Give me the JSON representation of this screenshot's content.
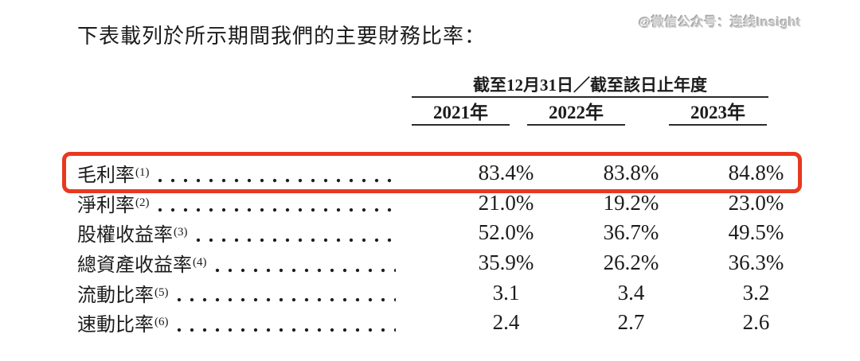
{
  "page": {
    "title": "下表載列於所示期間我們的主要財務比率：",
    "watermark": "@微信公众号：连线Insight"
  },
  "table": {
    "period_header": "截至12月31日／截至該日止年度",
    "year_columns": [
      "2021年",
      "2022年",
      "2023年"
    ],
    "rows": [
      {
        "label": "毛利率",
        "note": "(1)",
        "values": [
          "83.4%",
          "83.8%",
          "84.8%"
        ],
        "highlighted": true
      },
      {
        "label": "淨利率",
        "note": "(2)",
        "values": [
          "21.0%",
          "19.2%",
          "23.0%"
        ],
        "highlighted": false
      },
      {
        "label": "股權收益率",
        "note": "(3)",
        "values": [
          "52.0%",
          "36.7%",
          "49.5%"
        ],
        "highlighted": false
      },
      {
        "label": "總資產收益率",
        "note": "(4)",
        "values": [
          "35.9%",
          "26.2%",
          "36.3%"
        ],
        "highlighted": false
      },
      {
        "label": "流動比率",
        "note": "(5)",
        "values": [
          "3.1",
          "3.4",
          "3.2"
        ],
        "highlighted": false
      },
      {
        "label": "速動比率",
        "note": "(6)",
        "values": [
          "2.4",
          "2.7",
          "2.6"
        ],
        "highlighted": false
      }
    ],
    "highlight_color": "#e8391f",
    "text_color": "#1c1c1c",
    "rule_color": "#2b2b2b"
  }
}
